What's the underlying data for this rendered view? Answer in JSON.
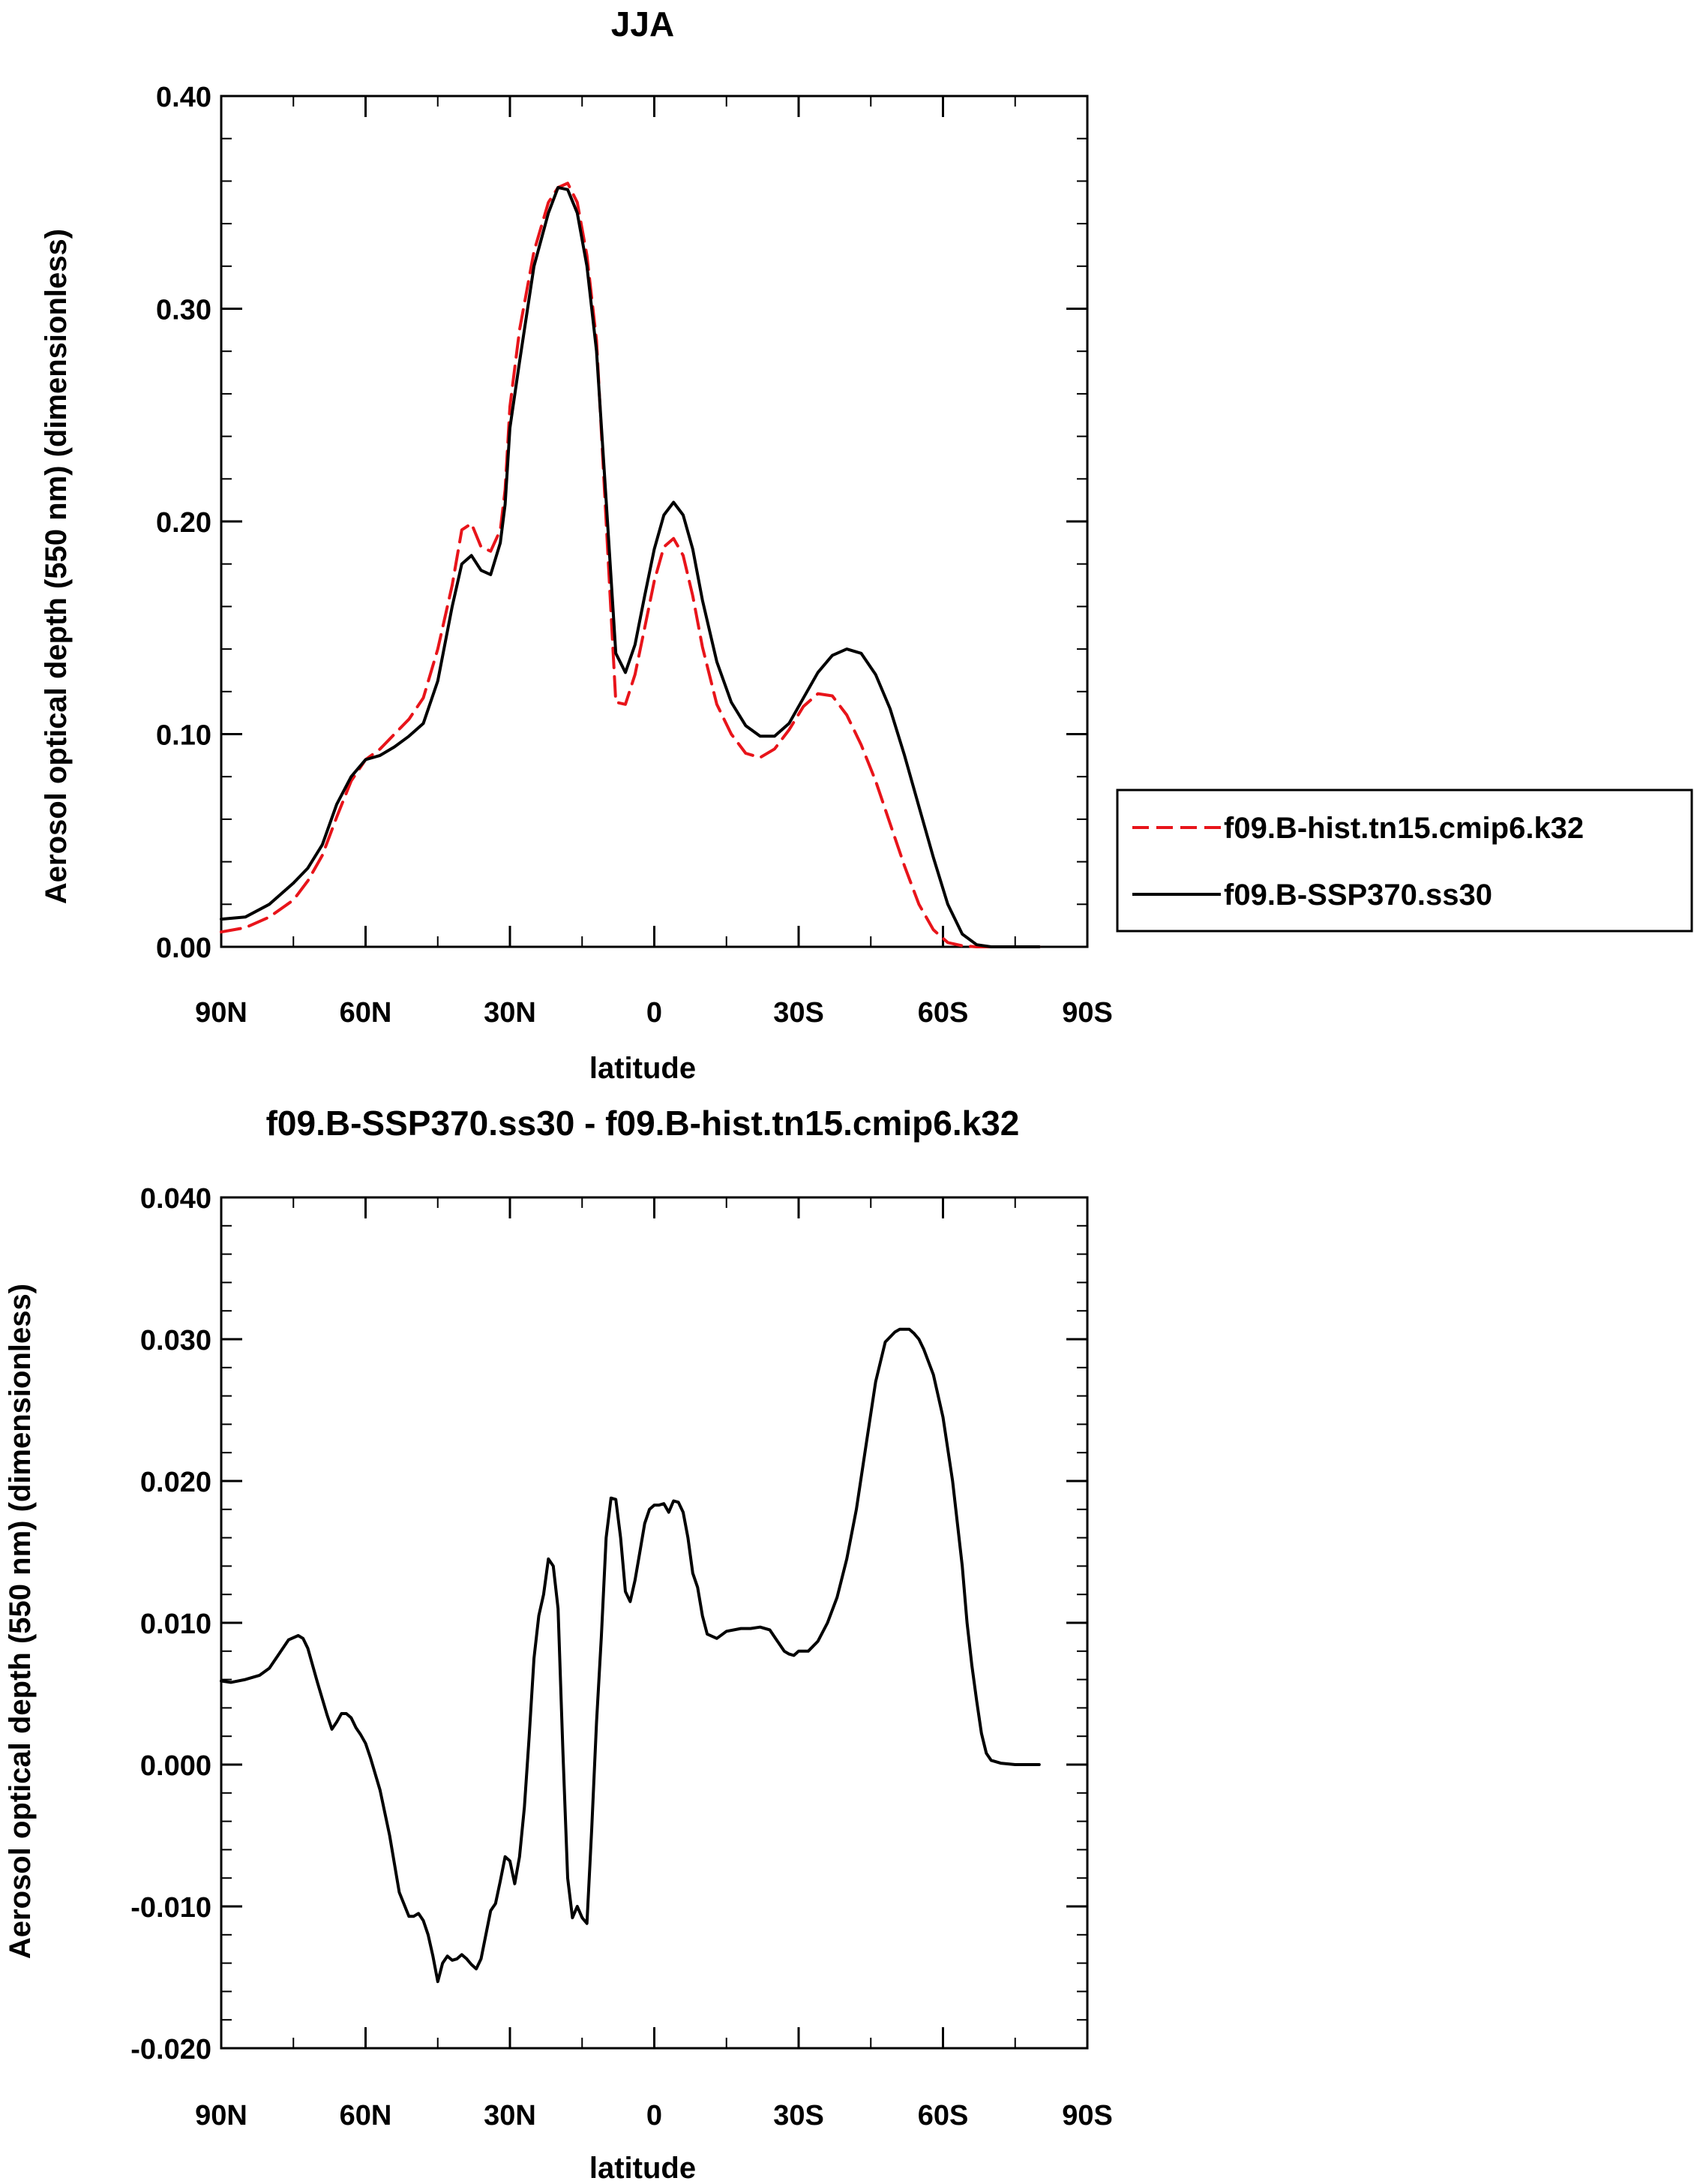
{
  "chart_data": [
    {
      "type": "line",
      "title": "JJA",
      "xlabel": "latitude",
      "ylabel": "Aerosol optical depth (550 nm) (dimensionless)",
      "xlim": [
        90,
        -90
      ],
      "ylim": [
        0.0,
        0.4
      ],
      "xticks": [
        {
          "value": 90,
          "label": "90N"
        },
        {
          "value": 60,
          "label": "60N"
        },
        {
          "value": 30,
          "label": "30N"
        },
        {
          "value": 0,
          "label": "0"
        },
        {
          "value": -30,
          "label": "30S"
        },
        {
          "value": -60,
          "label": "60S"
        },
        {
          "value": -90,
          "label": "90S"
        }
      ],
      "yticks": [
        {
          "value": 0.0,
          "label": "0.00"
        },
        {
          "value": 0.1,
          "label": "0.10"
        },
        {
          "value": 0.2,
          "label": "0.20"
        },
        {
          "value": 0.3,
          "label": "0.30"
        },
        {
          "value": 0.4,
          "label": "0.40"
        }
      ],
      "grid": false,
      "legend_position": "right",
      "series": [
        {
          "name": "f09.B-hist.tn15.cmip6.k32",
          "color": "#e8141a",
          "dash": "dashed",
          "x": [
            90,
            85,
            80,
            75,
            72,
            69,
            66,
            63,
            60,
            57,
            54,
            51,
            48,
            45,
            42,
            40,
            38,
            36,
            34,
            32,
            31,
            30,
            28,
            25,
            22,
            20,
            18,
            16,
            14,
            12,
            10,
            8,
            6,
            4,
            2,
            0,
            -2,
            -4,
            -6,
            -8,
            -10,
            -13,
            -16,
            -19,
            -22,
            -25,
            -28,
            -31,
            -34,
            -37,
            -40,
            -43,
            -46,
            -49,
            -52,
            -55,
            -58,
            -61,
            -64,
            -67,
            -70,
            -73,
            -76,
            -80
          ],
          "y": [
            0.007,
            0.009,
            0.014,
            0.022,
            0.031,
            0.043,
            0.061,
            0.078,
            0.088,
            0.093,
            0.1,
            0.107,
            0.117,
            0.14,
            0.17,
            0.196,
            0.199,
            0.188,
            0.186,
            0.196,
            0.215,
            0.254,
            0.29,
            0.327,
            0.35,
            0.357,
            0.359,
            0.35,
            0.325,
            0.285,
            0.2,
            0.115,
            0.114,
            0.128,
            0.15,
            0.172,
            0.188,
            0.192,
            0.184,
            0.165,
            0.141,
            0.114,
            0.1,
            0.091,
            0.089,
            0.093,
            0.102,
            0.113,
            0.119,
            0.118,
            0.109,
            0.095,
            0.078,
            0.058,
            0.038,
            0.02,
            0.008,
            0.002,
            0.0005,
            0.0,
            0.0,
            0.0,
            0.0,
            0.0
          ]
        },
        {
          "name": "f09.B-SSP370.ss30",
          "color": "#000000",
          "dash": "solid",
          "x": [
            90,
            85,
            80,
            75,
            72,
            69,
            66,
            63,
            60,
            57,
            54,
            51,
            48,
            45,
            42,
            40,
            38,
            36,
            34,
            32,
            31,
            30,
            28,
            25,
            22,
            20,
            18,
            16,
            14,
            12,
            10,
            8,
            6,
            4,
            2,
            0,
            -2,
            -4,
            -6,
            -8,
            -10,
            -13,
            -16,
            -19,
            -22,
            -25,
            -28,
            -31,
            -34,
            -37,
            -40,
            -43,
            -46,
            -49,
            -52,
            -55,
            -58,
            -61,
            -64,
            -67,
            -70,
            -73,
            -76,
            -80
          ],
          "y": [
            0.013,
            0.014,
            0.02,
            0.03,
            0.037,
            0.048,
            0.067,
            0.08,
            0.088,
            0.09,
            0.094,
            0.099,
            0.105,
            0.125,
            0.16,
            0.18,
            0.184,
            0.177,
            0.175,
            0.19,
            0.208,
            0.244,
            0.275,
            0.32,
            0.345,
            0.357,
            0.356,
            0.345,
            0.32,
            0.28,
            0.21,
            0.138,
            0.129,
            0.142,
            0.165,
            0.187,
            0.203,
            0.209,
            0.203,
            0.187,
            0.163,
            0.134,
            0.115,
            0.104,
            0.099,
            0.099,
            0.105,
            0.117,
            0.129,
            0.137,
            0.14,
            0.138,
            0.128,
            0.112,
            0.09,
            0.066,
            0.042,
            0.02,
            0.006,
            0.001,
            0.0,
            0.0,
            0.0,
            0.0
          ]
        }
      ]
    },
    {
      "type": "line",
      "title": "f09.B-SSP370.ss30 - f09.B-hist.tn15.cmip6.k32",
      "xlabel": "latitude",
      "ylabel": "Aerosol optical depth (550 nm) (dimensionless)",
      "xlim": [
        90,
        -90
      ],
      "ylim": [
        -0.02,
        0.04
      ],
      "xticks": [
        {
          "value": 90,
          "label": "90N"
        },
        {
          "value": 60,
          "label": "60N"
        },
        {
          "value": 30,
          "label": "30N"
        },
        {
          "value": 0,
          "label": "0"
        },
        {
          "value": -30,
          "label": "30S"
        },
        {
          "value": -60,
          "label": "60S"
        },
        {
          "value": -90,
          "label": "90S"
        }
      ],
      "yticks": [
        {
          "value": -0.02,
          "label": "-0.020"
        },
        {
          "value": -0.01,
          "label": "-0.010"
        },
        {
          "value": 0.0,
          "label": "0.000"
        },
        {
          "value": 0.01,
          "label": "0.010"
        },
        {
          "value": 0.02,
          "label": "0.020"
        },
        {
          "value": 0.03,
          "label": "0.030"
        },
        {
          "value": 0.04,
          "label": "0.040"
        }
      ],
      "grid": false,
      "series": [
        {
          "color": "#000000",
          "dash": "solid",
          "x": [
            90,
            88,
            85,
            82,
            80,
            78,
            76,
            74,
            73,
            72,
            70,
            68,
            67,
            66,
            65,
            64,
            63,
            62,
            61,
            60,
            59,
            57,
            55,
            53,
            51,
            50,
            49,
            48,
            47,
            46,
            45,
            44,
            43,
            42,
            41,
            40,
            39,
            38,
            37,
            36,
            35,
            34,
            33,
            32,
            31,
            30,
            29,
            28,
            27,
            26,
            25,
            24,
            23,
            22,
            21,
            20,
            19,
            18,
            17,
            16,
            15,
            14,
            13,
            12,
            11,
            10,
            9,
            8,
            7,
            6,
            5,
            4,
            3,
            2,
            1,
            0,
            -1,
            -2,
            -3,
            -4,
            -5,
            -6,
            -7,
            -8,
            -9,
            -10,
            -11,
            -13,
            -15,
            -18,
            -20,
            -22,
            -24,
            -25,
            -26,
            -27,
            -28,
            -29,
            -30,
            -32,
            -34,
            -36,
            -38,
            -40,
            -42,
            -44,
            -46,
            -48,
            -50,
            -51,
            -52,
            -53,
            -54,
            -55,
            -56,
            -58,
            -60,
            -62,
            -64,
            -65,
            -66,
            -67,
            -68,
            -69,
            -70,
            -72,
            -75,
            -80
          ],
          "y": [
            0.0059,
            0.0058,
            0.006,
            0.0063,
            0.0068,
            0.0078,
            0.0088,
            0.0091,
            0.0089,
            0.0082,
            0.0058,
            0.0035,
            0.0025,
            0.003,
            0.0036,
            0.0036,
            0.0033,
            0.0026,
            0.0021,
            0.0015,
            0.0005,
            -0.0018,
            -0.005,
            -0.009,
            -0.0107,
            -0.0107,
            -0.0105,
            -0.011,
            -0.012,
            -0.0135,
            -0.0153,
            -0.014,
            -0.0135,
            -0.0138,
            -0.0137,
            -0.0134,
            -0.0137,
            -0.0141,
            -0.0144,
            -0.0137,
            -0.012,
            -0.0103,
            -0.0098,
            -0.0082,
            -0.0065,
            -0.0068,
            -0.0084,
            -0.0065,
            -0.003,
            0.002,
            0.0075,
            0.0105,
            0.012,
            0.0145,
            0.014,
            0.011,
            0.001,
            -0.008,
            -0.0108,
            -0.01,
            -0.0108,
            -0.0112,
            -0.0045,
            0.003,
            0.009,
            0.016,
            0.0188,
            0.0187,
            0.016,
            0.0122,
            0.0115,
            0.013,
            0.015,
            0.017,
            0.018,
            0.0183,
            0.0183,
            0.0184,
            0.0178,
            0.0186,
            0.0185,
            0.0178,
            0.016,
            0.0135,
            0.0125,
            0.0105,
            0.0092,
            0.0089,
            0.0094,
            0.0096,
            0.0096,
            0.0097,
            0.0095,
            0.009,
            0.0085,
            0.008,
            0.0078,
            0.0077,
            0.008,
            0.008,
            0.0087,
            0.01,
            0.0118,
            0.0145,
            0.018,
            0.0225,
            0.027,
            0.0298,
            0.0305,
            0.0307,
            0.0307,
            0.0307,
            0.0304,
            0.03,
            0.0293,
            0.0275,
            0.0245,
            0.02,
            0.014,
            0.01,
            0.007,
            0.0045,
            0.0022,
            0.0008,
            0.0003,
            0.0001,
            0.0,
            0.0
          ]
        }
      ]
    }
  ],
  "legend": {
    "items": [
      {
        "label": "f09.B-hist.tn15.cmip6.k32",
        "color": "#e8141a",
        "dash": "dashed"
      },
      {
        "label": "f09.B-SSP370.ss30",
        "color": "#000000",
        "dash": "solid"
      }
    ]
  }
}
